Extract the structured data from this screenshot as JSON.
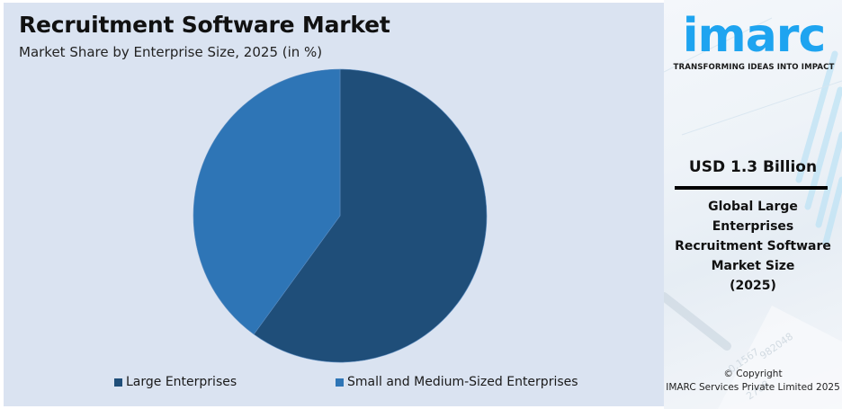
{
  "header": {
    "title": "Recruitment Software Market",
    "subtitle": "Market Share by Enterprise Size, 2025 (in %)"
  },
  "legend": {
    "items": [
      {
        "label": "Large Enterprises",
        "color": "#1f4e79"
      },
      {
        "label": "Small and Medium-Sized Enterprises",
        "color": "#2e75b6"
      }
    ]
  },
  "info_panel": {
    "logo_text": "imarc",
    "tagline": "TRANSFORMING IDEAS INTO IMPACT",
    "value": "USD 1.3 Billion",
    "description": "Global Large Enterprises Recruitment Software Market Size (2025)",
    "description_lines": [
      "Global Large",
      "Enterprises",
      "Recruitment Software",
      "Market Size",
      "(2025)"
    ],
    "copyright_line1": "© Copyright",
    "copyright_line2": "IMARC Services Private Limited 2025"
  },
  "colors": {
    "background": "#dae3f1",
    "large": "#1f4e79",
    "sme": "#2e75b6",
    "brand": "#1ea4f0"
  },
  "chart_data": {
    "type": "pie",
    "title": "Recruitment Software Market",
    "subtitle": "Market Share by Enterprise Size, 2025 (in %)",
    "categories": [
      "Large Enterprises",
      "Small and Medium-Sized Enterprises"
    ],
    "values": [
      60,
      40
    ],
    "colors": [
      "#1f4e79",
      "#2e75b6"
    ],
    "start_angle": "12 o'clock, clockwise",
    "legend_position": "bottom",
    "data_labels": false
  }
}
